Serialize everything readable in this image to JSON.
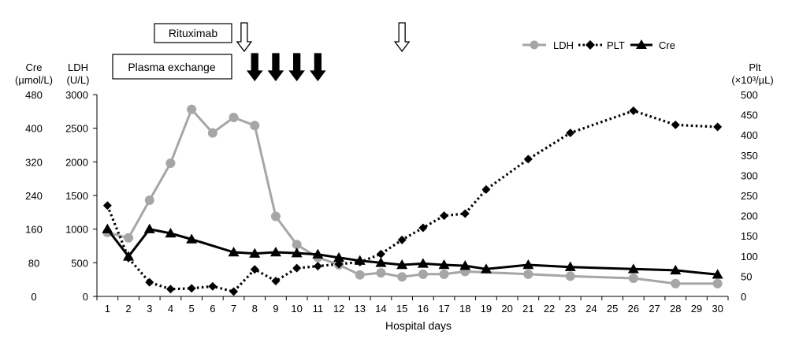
{
  "chart_data": {
    "type": "line",
    "xlabel": "Hospital days",
    "categories": [
      "1",
      "2",
      "3",
      "4",
      "5",
      "6",
      "7",
      "8",
      "9",
      "10",
      "11",
      "12",
      "13",
      "14",
      "15",
      "16",
      "17",
      "18",
      "19",
      "20",
      "21",
      "22",
      "23",
      "24",
      "25",
      "26",
      "27",
      "28",
      "29",
      "30"
    ],
    "axes": {
      "left_outer": {
        "title_line1": "Cre",
        "title_line2": "(µmol/L)",
        "range": [
          0,
          480
        ],
        "ticks": [
          0,
          80,
          160,
          240,
          320,
          400,
          480
        ]
      },
      "left_inner": {
        "title_line1": "LDH",
        "title_line2": "(U/L)",
        "range": [
          0,
          3000
        ],
        "ticks": [
          0,
          500,
          1000,
          1500,
          2000,
          2500,
          3000
        ]
      },
      "right": {
        "title_line1": "Plt",
        "title_line2": "(×10³/µL)",
        "range": [
          0,
          500
        ],
        "ticks": [
          0,
          50,
          100,
          150,
          200,
          250,
          300,
          350,
          400,
          450,
          500
        ]
      }
    },
    "series": [
      {
        "name": "LDH",
        "axis": "left_inner",
        "color": "#a6a6a6",
        "marker": "circle",
        "line": "solid",
        "x": [
          1,
          2,
          3,
          4,
          5,
          6,
          7,
          8,
          9,
          10,
          11,
          12,
          13,
          14,
          15,
          16,
          17,
          18,
          21,
          23,
          26,
          28,
          30
        ],
        "values": [
          950,
          870,
          1430,
          1980,
          2780,
          2430,
          2660,
          2540,
          1190,
          770,
          580,
          470,
          320,
          350,
          290,
          330,
          330,
          370,
          330,
          300,
          270,
          190,
          190
        ]
      },
      {
        "name": "PLT",
        "axis": "right",
        "color": "#000000",
        "marker": "diamond",
        "line": "dotted",
        "x": [
          1,
          2,
          3,
          4,
          5,
          6,
          7,
          8,
          9,
          10,
          11,
          12,
          13,
          14,
          15,
          16,
          17,
          18,
          19,
          21,
          23,
          26,
          28,
          30
        ],
        "values": [
          225,
          95,
          35,
          18,
          20,
          25,
          12,
          67,
          38,
          70,
          75,
          80,
          85,
          105,
          140,
          170,
          200,
          205,
          265,
          340,
          405,
          460,
          425,
          420
        ]
      },
      {
        "name": "Cre",
        "axis": "left_outer",
        "color": "#000000",
        "marker": "triangle",
        "line": "solid",
        "x": [
          1,
          2,
          3,
          4,
          5,
          7,
          8,
          9,
          10,
          11,
          12,
          13,
          14,
          15,
          16,
          17,
          18,
          19,
          21,
          23,
          26,
          28,
          30
        ],
        "values": [
          160,
          95,
          160,
          150,
          136,
          105,
          102,
          105,
          103,
          100,
          92,
          85,
          80,
          75,
          78,
          75,
          73,
          65,
          75,
          70,
          65,
          62,
          52
        ]
      }
    ],
    "legend": {
      "position": "top-right",
      "entries": [
        "LDH",
        "PLT",
        "Cre"
      ]
    },
    "annotations": {
      "rituximab": {
        "label": "Rituximab",
        "days": [
          7.5,
          15
        ],
        "arrow_style": "open"
      },
      "plasma_exchange": {
        "label": "Plasma exchange",
        "days": [
          8,
          9,
          10,
          11
        ],
        "arrow_style": "filled"
      }
    },
    "grid": false
  }
}
